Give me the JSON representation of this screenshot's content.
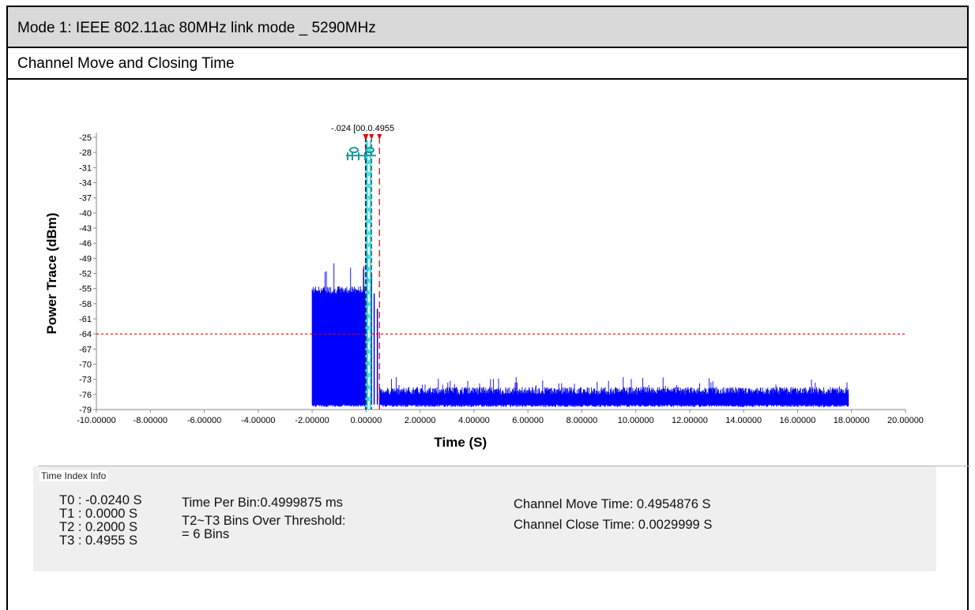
{
  "header": {
    "title": "Mode 1: IEEE 802.11ac 80MHz link mode _ 5290MHz",
    "subtitle": "Channel Move and Closing Time"
  },
  "chart_data": {
    "type": "line",
    "xlabel": "Time (S)",
    "ylabel": "Power Trace (dBm)",
    "xlim": [
      -10,
      20
    ],
    "ylim": [
      -79,
      -25
    ],
    "x_ticks": [
      "-10.00000",
      "-8.00000",
      "-6.00000",
      "-4.00000",
      "-2.00000",
      "0.00000",
      "2.00000",
      "4.00000",
      "6.00000",
      "8.00000",
      "10.00000",
      "12.00000",
      "14.00000",
      "16.00000",
      "18.00000",
      "20.00000"
    ],
    "y_ticks": [
      "-25",
      "-28",
      "-31",
      "-34",
      "-37",
      "-40",
      "-43",
      "-46",
      "-49",
      "-52",
      "-55",
      "-58",
      "-61",
      "-64",
      "-67",
      "-70",
      "-73",
      "-76",
      "-79"
    ],
    "threshold_dbm": -64,
    "trace_color": "#0000ff",
    "threshold_color": "#e00000",
    "marker_color": "#1a9a9a",
    "highlight_color": "#22e0e6",
    "series": [
      {
        "x": [
          -2.0,
          -0.03
        ],
        "level_top": -56,
        "level_bottom": -78
      },
      {
        "x": [
          0.5,
          17.9
        ],
        "level_top": -76,
        "level_bottom": -78
      }
    ],
    "bursts": [
      {
        "x": 0.05,
        "top": -48
      },
      {
        "x": 0.2,
        "top": -52
      },
      {
        "x": 0.3,
        "top": -56
      },
      {
        "x": 0.42,
        "top": -59
      }
    ],
    "markers": [
      {
        "name": "T0",
        "x": -0.024,
        "label": "-.024"
      },
      {
        "name": "T1",
        "x": 0.0,
        "label": "0"
      },
      {
        "name": "T2",
        "x": 0.2,
        "label": "0.2"
      },
      {
        "name": "T3",
        "x": 0.4955,
        "label": "0.4955"
      }
    ],
    "top_label_text": "-.024  [00.0.4955"
  },
  "info": {
    "group_label": "Time Index Info",
    "t_values": [
      "T0 : -0.0240  S",
      "T1 : 0.0000  S",
      "T2 : 0.2000  S",
      "T3 : 0.4955  S"
    ],
    "time_per_bin": "Time Per Bin:0.4999875 ms",
    "bins_over_label": "T2~T3 Bins Over Threshold:",
    "bins_over_value": "= 6 Bins",
    "channel_move": "Channel Move Time: 0.4954876  S",
    "channel_close": "Channel Close Time: 0.0029999  S"
  }
}
